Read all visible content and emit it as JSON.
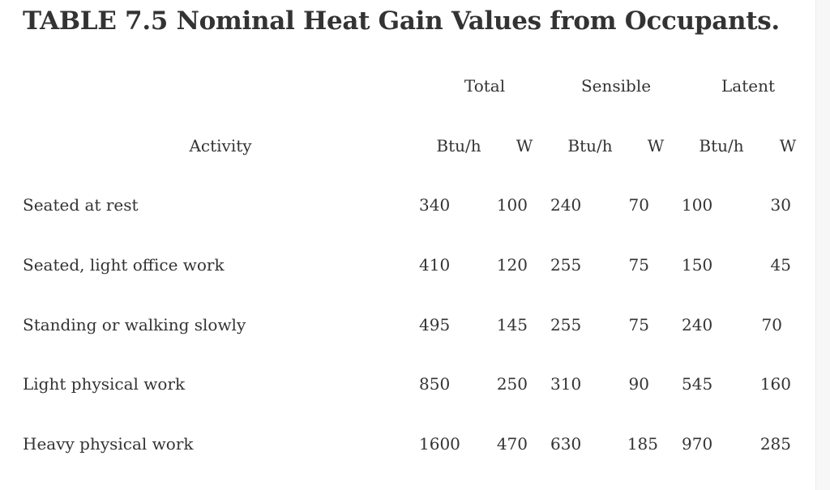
{
  "table": {
    "title": "TABLE 7.5 Nominal Heat Gain Values from Occupants.",
    "group_headers": [
      "Total",
      "Sensible",
      "Latent"
    ],
    "activity_header": "Activity",
    "unit_headers": [
      "Btu/h",
      "W",
      "Btu/h",
      "W",
      "Btu/h",
      "W"
    ],
    "rows": [
      {
        "activity": "Seated at rest",
        "values": [
          "340",
          "100",
          "240",
          "70",
          "100",
          "30"
        ]
      },
      {
        "activity": "Seated, light office work",
        "values": [
          "410",
          "120",
          "255",
          "75",
          "150",
          "45"
        ]
      },
      {
        "activity": "Standing or walking slowly",
        "values": [
          "495",
          "145",
          "255",
          "75",
          "240",
          "70"
        ]
      },
      {
        "activity": "Light physical work",
        "values": [
          "850",
          "250",
          "310",
          "90",
          "545",
          "160"
        ]
      },
      {
        "activity": "Heavy physical work",
        "values": [
          "1600",
          "470",
          "630",
          "185",
          "970",
          "285"
        ]
      }
    ]
  }
}
